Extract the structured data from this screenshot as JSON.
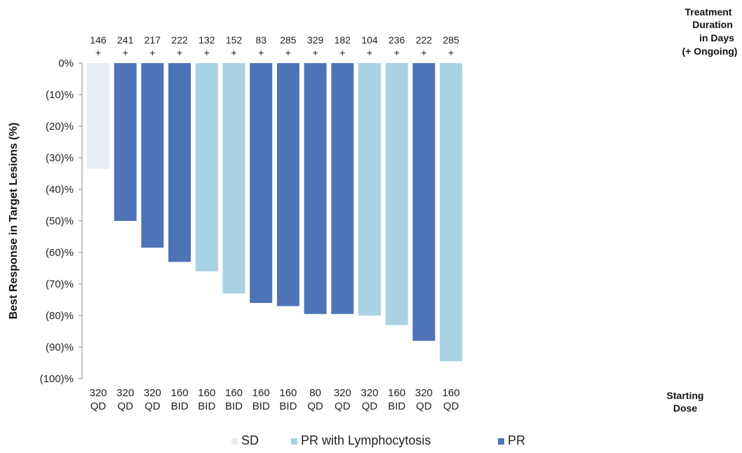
{
  "chart_data": {
    "type": "bar",
    "orientation": "vertical-down",
    "ylabel": "Best Response in Target Lesions (%)",
    "ylim": [
      -100,
      0
    ],
    "yticks": [
      "0%",
      "(10)%",
      "(20)%",
      "(30)%",
      "(40)%",
      "(50)%",
      "(60)%",
      "(70)%",
      "(80)%",
      "(90)%",
      "(100)%"
    ],
    "top_header": [
      "Treatment",
      "Duration",
      "in Days",
      "(+ Ongoing)"
    ],
    "bottom_header": [
      "Starting",
      "Dose"
    ],
    "ongoing_marker": "+",
    "legend_placement": "bottom",
    "legend": [
      {
        "key": "SD",
        "label": "SD",
        "color": "#e7edf3"
      },
      {
        "key": "PRL",
        "label": "PR with Lymphocytosis",
        "color": "#a9d2e4"
      },
      {
        "key": "PR",
        "label": "PR",
        "color": "#4f73b7"
      }
    ],
    "bars": [
      {
        "value": -33.5,
        "category": "SD",
        "duration": "146",
        "dose": [
          "320",
          "QD"
        ]
      },
      {
        "value": -50,
        "category": "PR",
        "duration": "241",
        "dose": [
          "320",
          "QD"
        ]
      },
      {
        "value": -58.5,
        "category": "PR",
        "duration": "217",
        "dose": [
          "320",
          "QD"
        ]
      },
      {
        "value": -63,
        "category": "PR",
        "duration": "222",
        "dose": [
          "160",
          "BID"
        ]
      },
      {
        "value": -66,
        "category": "PRL",
        "duration": "132",
        "dose": [
          "160",
          "BID"
        ]
      },
      {
        "value": -73,
        "category": "PRL",
        "duration": "152",
        "dose": [
          "160",
          "BID"
        ]
      },
      {
        "value": -76,
        "category": "PR",
        "duration": "83",
        "dose": [
          "160",
          "BID"
        ]
      },
      {
        "value": -77,
        "category": "PR",
        "duration": "285",
        "dose": [
          "160",
          "BID"
        ]
      },
      {
        "value": -79.5,
        "category": "PR",
        "duration": "329",
        "dose": [
          "80",
          "QD"
        ]
      },
      {
        "value": -79.5,
        "category": "PR",
        "duration": "182",
        "dose": [
          "320",
          "QD"
        ]
      },
      {
        "value": -80,
        "category": "PRL",
        "duration": "104",
        "dose": [
          "320",
          "QD"
        ]
      },
      {
        "value": -83,
        "category": "PRL",
        "duration": "236",
        "dose": [
          "160",
          "BID"
        ]
      },
      {
        "value": -88,
        "category": "PR",
        "duration": "222",
        "dose": [
          "320",
          "QD"
        ]
      },
      {
        "value": -94.5,
        "category": "PRL",
        "duration": "285",
        "dose": [
          "160",
          "QD"
        ]
      }
    ]
  }
}
